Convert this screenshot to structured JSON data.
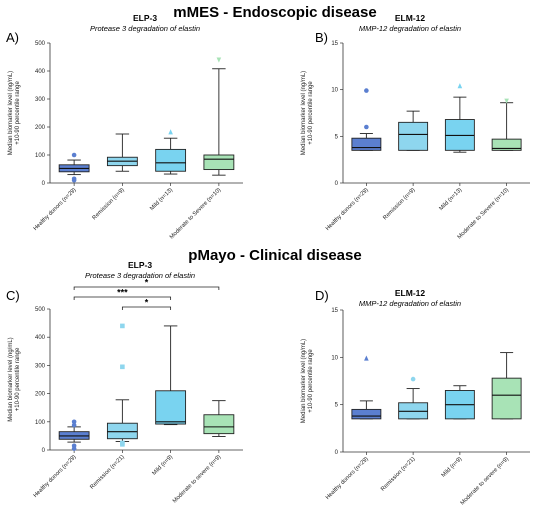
{
  "figure": {
    "section_titles": [
      "mMES - Endoscopic disease",
      "pMayo - Clinical disease"
    ]
  },
  "colors": {
    "dark_blue": "#5b7fd0",
    "light_blue": "#8ed6ee",
    "sky_blue": "#79d3f0",
    "green": "#a8e3b6",
    "stroke": "#333333"
  },
  "chart_data": [
    {
      "panel": "A)",
      "type": "box",
      "title": "ELP-3",
      "subtitle": "Protease 3 degradation of elastin",
      "ylabel": [
        "Median biomarker level  (ng/mL)",
        "+10-90 percentile range"
      ],
      "ylim": [
        0,
        500
      ],
      "yticks": [
        0,
        100,
        200,
        300,
        400,
        500
      ],
      "categories": [
        "Healthy donors (n=29)",
        "Remission (n=9)",
        "Mild (n=13)",
        "Moderate to Severe (n=10)"
      ],
      "boxes": [
        {
          "whisker_low": 30,
          "q1": 40,
          "median": 52,
          "q3": 65,
          "whisker_high": 82,
          "color": "dark_blue"
        },
        {
          "whisker_low": 42,
          "q1": 62,
          "median": 78,
          "q3": 92,
          "whisker_high": 175,
          "color": "light_blue"
        },
        {
          "whisker_low": 32,
          "q1": 42,
          "median": 72,
          "q3": 120,
          "whisker_high": 160,
          "color": "sky_blue"
        },
        {
          "whisker_low": 28,
          "q1": 48,
          "median": 85,
          "q3": 100,
          "whisker_high": 408,
          "color": "green"
        }
      ],
      "outliers": [
        {
          "cat": 0,
          "y": 100,
          "marker": "circle",
          "color": "dark_blue"
        },
        {
          "cat": 0,
          "y": 10,
          "marker": "circle",
          "color": "dark_blue"
        },
        {
          "cat": 0,
          "y": 15,
          "marker": "circle",
          "color": "dark_blue"
        },
        {
          "cat": 2,
          "y": 182,
          "marker": "triangle",
          "color": "sky_blue"
        },
        {
          "cat": 3,
          "y": 440,
          "marker": "triangle-down",
          "color": "green"
        }
      ],
      "significance": []
    },
    {
      "panel": "B)",
      "type": "box",
      "title": "ELM-12",
      "subtitle": "MMP-12 degradation of elastin",
      "ylabel": [
        "Median biomarker level  (ng/mL)",
        "+10-90 percentile range"
      ],
      "ylim": [
        0,
        15
      ],
      "yticks": [
        0,
        5,
        10,
        15
      ],
      "categories": [
        "Healthy donors (n=29)",
        "Remission (n=9)",
        "Mild (n=13)",
        "Moderate to Severe (n=10)"
      ],
      "boxes": [
        {
          "whisker_low": 3.5,
          "q1": 3.5,
          "median": 3.8,
          "q3": 4.8,
          "whisker_high": 5.3,
          "color": "dark_blue"
        },
        {
          "whisker_low": 3.5,
          "q1": 3.5,
          "median": 5.2,
          "q3": 6.5,
          "whisker_high": 7.7,
          "color": "light_blue"
        },
        {
          "whisker_low": 3.3,
          "q1": 3.5,
          "median": 5.1,
          "q3": 6.8,
          "whisker_high": 9.2,
          "color": "sky_blue"
        },
        {
          "whisker_low": 3.5,
          "q1": 3.5,
          "median": 3.7,
          "q3": 4.7,
          "whisker_high": 8.6,
          "color": "green"
        }
      ],
      "outliers": [
        {
          "cat": 0,
          "y": 9.9,
          "marker": "circle",
          "color": "dark_blue"
        },
        {
          "cat": 0,
          "y": 6.0,
          "marker": "circle",
          "color": "dark_blue"
        },
        {
          "cat": 2,
          "y": 10.4,
          "marker": "triangle",
          "color": "sky_blue"
        },
        {
          "cat": 3,
          "y": 8.8,
          "marker": "triangle-down",
          "color": "green"
        }
      ],
      "significance": []
    },
    {
      "panel": "C)",
      "type": "box",
      "title": "ELP-3",
      "subtitle": "Protease 3 degradation of elastin",
      "ylabel": [
        "Median biomarker level  (ng/mL)",
        "+10-90 percentile range"
      ],
      "ylim": [
        0,
        500
      ],
      "yticks": [
        0,
        100,
        200,
        300,
        400,
        500
      ],
      "categories": [
        "Healthy donors (n=29)",
        "Remission (n=21)",
        "Mild (n=9)",
        "Moderate to severe (n=9)"
      ],
      "boxes": [
        {
          "whisker_low": 28,
          "q1": 38,
          "median": 50,
          "q3": 65,
          "whisker_high": 82,
          "color": "dark_blue"
        },
        {
          "whisker_low": 30,
          "q1": 40,
          "median": 65,
          "q3": 95,
          "whisker_high": 178,
          "color": "light_blue"
        },
        {
          "whisker_low": 90,
          "q1": 92,
          "median": 100,
          "q3": 210,
          "whisker_high": 440,
          "color": "sky_blue"
        },
        {
          "whisker_low": 48,
          "q1": 58,
          "median": 82,
          "q3": 125,
          "whisker_high": 175,
          "color": "green"
        }
      ],
      "outliers": [
        {
          "cat": 0,
          "y": 100,
          "marker": "circle",
          "color": "dark_blue"
        },
        {
          "cat": 0,
          "y": 88,
          "marker": "circle",
          "color": "dark_blue"
        },
        {
          "cat": 0,
          "y": 15,
          "marker": "circle",
          "color": "dark_blue"
        },
        {
          "cat": 0,
          "y": 5,
          "marker": "circle",
          "color": "dark_blue"
        },
        {
          "cat": 1,
          "y": 440,
          "marker": "square",
          "color": "light_blue"
        },
        {
          "cat": 1,
          "y": 295,
          "marker": "square",
          "color": "light_blue"
        },
        {
          "cat": 1,
          "y": 20,
          "marker": "square",
          "color": "light_blue"
        },
        {
          "cat": 1,
          "y": 25,
          "marker": "square",
          "color": "light_blue"
        }
      ],
      "significance": [
        {
          "from": 0,
          "to": 3,
          "y": 500,
          "label": "*"
        },
        {
          "from": 0,
          "to": 2,
          "y": 465,
          "label": "***"
        },
        {
          "from": 1,
          "to": 2,
          "y": 440,
          "label": "*"
        }
      ]
    },
    {
      "panel": "D)",
      "type": "box",
      "title": "ELM-12",
      "subtitle": "MMP-12 degradation of elastin",
      "ylabel": [
        "Median biomarker level  (ng/mL)",
        "+10-90 percentile range"
      ],
      "ylim": [
        0,
        15
      ],
      "yticks": [
        0,
        5,
        10,
        15
      ],
      "categories": [
        "Healthy donors (n=29)",
        "Remission (n=21)",
        "Mild (n=9)",
        "Moderate to severe (n=9)"
      ],
      "boxes": [
        {
          "whisker_low": 3.5,
          "q1": 3.5,
          "median": 3.8,
          "q3": 4.5,
          "whisker_high": 5.4,
          "color": "dark_blue"
        },
        {
          "whisker_low": 3.5,
          "q1": 3.5,
          "median": 4.3,
          "q3": 5.2,
          "whisker_high": 6.7,
          "color": "light_blue"
        },
        {
          "whisker_low": 3.5,
          "q1": 3.5,
          "median": 5.0,
          "q3": 6.5,
          "whisker_high": 7.0,
          "color": "sky_blue"
        },
        {
          "whisker_low": 3.5,
          "q1": 3.5,
          "median": 6.0,
          "q3": 7.8,
          "whisker_high": 10.5,
          "color": "green"
        }
      ],
      "outliers": [
        {
          "cat": 0,
          "y": 9.9,
          "marker": "triangle",
          "color": "dark_blue"
        },
        {
          "cat": 1,
          "y": 7.7,
          "marker": "circle",
          "color": "light_blue"
        }
      ],
      "significance": []
    }
  ]
}
